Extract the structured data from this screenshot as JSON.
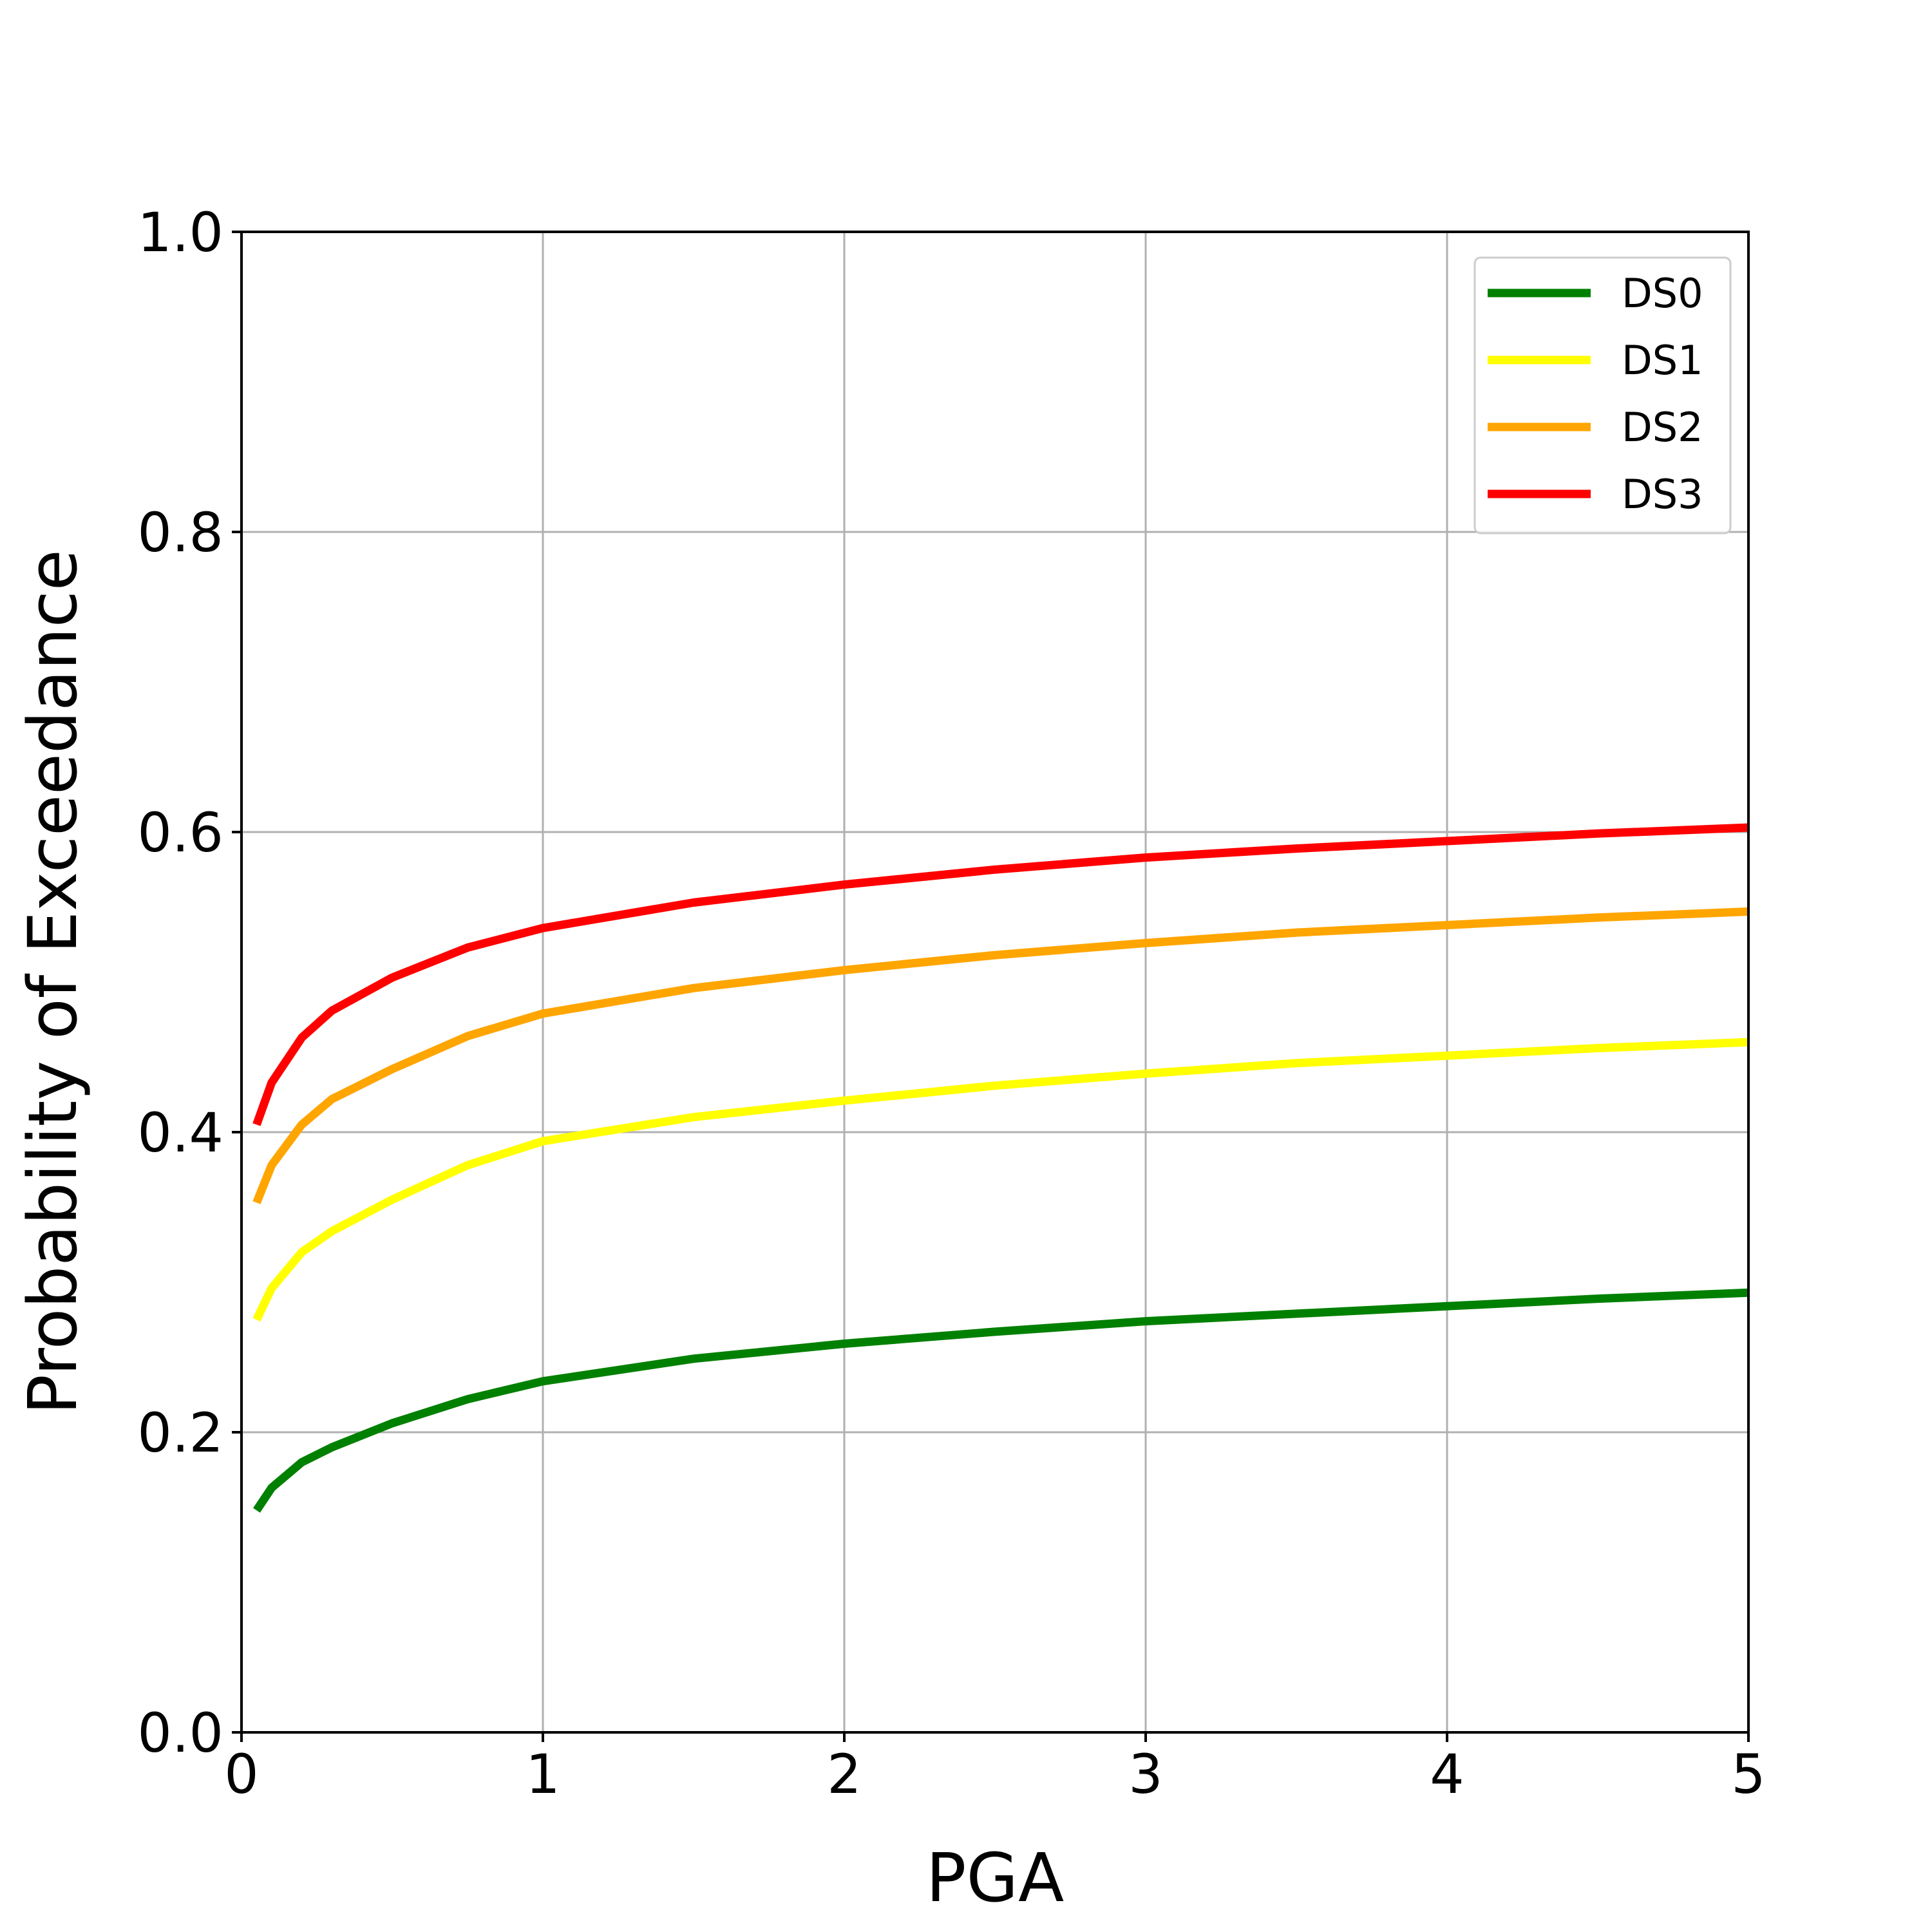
{
  "chart_data": {
    "type": "line",
    "title": "",
    "xlabel": "PGA",
    "ylabel": "Probability of Exceedance",
    "xlim": [
      0,
      5
    ],
    "ylim": [
      0,
      1
    ],
    "xticks": [
      0,
      1,
      2,
      3,
      4,
      5
    ],
    "xtick_labels": [
      "0",
      "1",
      "2",
      "3",
      "4",
      "5"
    ],
    "yticks": [
      0.0,
      0.2,
      0.4,
      0.6,
      0.8,
      1.0
    ],
    "ytick_labels": [
      "0.0",
      "0.2",
      "0.4",
      "0.6",
      "0.8",
      "1.0"
    ],
    "grid": true,
    "legend_position": "top-right",
    "x": [
      0.05,
      0.1,
      0.2,
      0.3,
      0.5,
      0.75,
      1,
      1.5,
      2,
      2.5,
      3,
      3.5,
      4,
      4.5,
      5
    ],
    "series": [
      {
        "name": "DS0",
        "color": "#008000",
        "values": [
          0.148,
          0.163,
          0.18,
          0.19,
          0.206,
          0.222,
          0.234,
          0.249,
          0.259,
          0.267,
          0.274,
          0.279,
          0.284,
          0.289,
          0.293
        ]
      },
      {
        "name": "DS1",
        "color": "#FFFF00",
        "values": [
          0.275,
          0.296,
          0.32,
          0.334,
          0.355,
          0.378,
          0.394,
          0.41,
          0.421,
          0.431,
          0.439,
          0.446,
          0.451,
          0.456,
          0.46
        ]
      },
      {
        "name": "DS2",
        "color": "#FFA500",
        "values": [
          0.353,
          0.378,
          0.405,
          0.422,
          0.442,
          0.464,
          0.479,
          0.496,
          0.508,
          0.518,
          0.526,
          0.533,
          0.538,
          0.543,
          0.547
        ]
      },
      {
        "name": "DS3",
        "color": "#FF0000",
        "values": [
          0.405,
          0.433,
          0.463,
          0.481,
          0.503,
          0.523,
          0.536,
          0.553,
          0.565,
          0.575,
          0.583,
          0.589,
          0.594,
          0.599,
          0.603
        ]
      }
    ]
  }
}
